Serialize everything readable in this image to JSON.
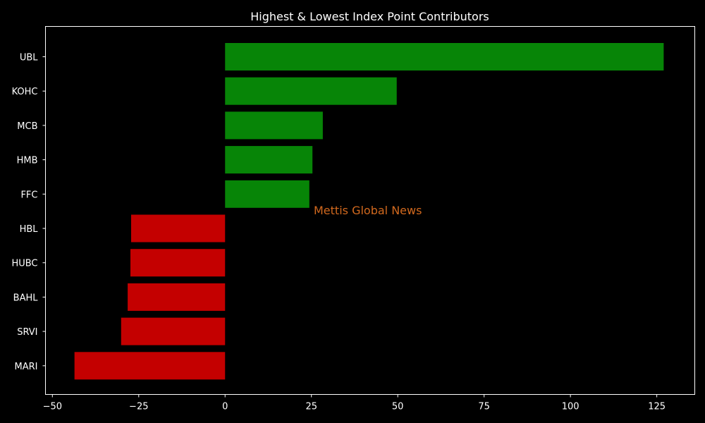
{
  "chart_data": {
    "type": "bar",
    "orientation": "horizontal",
    "title": "Highest & Lowest Index Point Contributors",
    "xlabel": "",
    "ylabel": "",
    "categories": [
      "UBL",
      "KOHC",
      "MCB",
      "HMB",
      "FFC",
      "HBL",
      "HUBC",
      "BAHL",
      "SRVI",
      "MARI"
    ],
    "values": [
      127.0,
      49.7,
      28.3,
      25.3,
      24.4,
      -27.2,
      -27.4,
      -28.2,
      -30.1,
      -43.6
    ],
    "xlim": [
      -52,
      136
    ],
    "xticks": [
      -50,
      -25,
      0,
      25,
      50,
      75,
      100,
      125
    ],
    "grid": false,
    "legend": "none",
    "colors": {
      "positive": "#078507",
      "negative": "#c40000",
      "background": "#000000",
      "text": "#ffffff"
    }
  },
  "watermark": {
    "text": "Mettis Global News",
    "color": "#d2691e"
  }
}
